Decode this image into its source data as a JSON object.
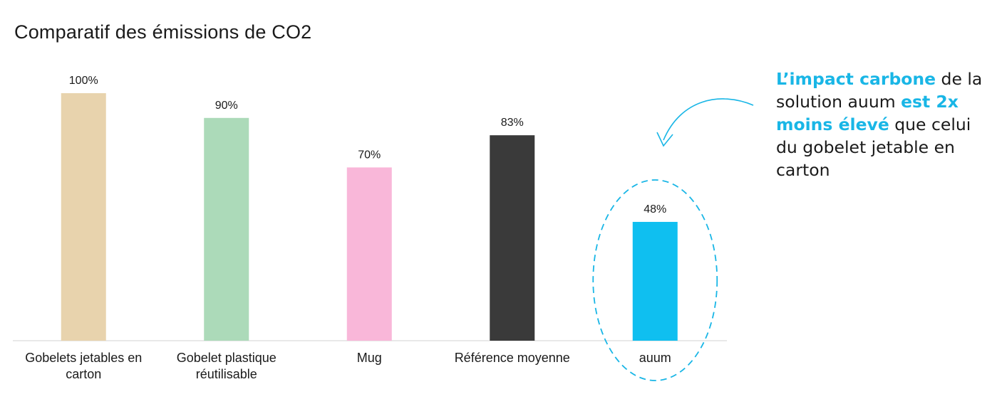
{
  "title": "Comparatif des émissions de CO2",
  "colors": {
    "accent": "#19b6e6",
    "axis": "#d9d9d9"
  },
  "callout": {
    "part1": "L’impact carbone",
    "part2": " de la solution auum ",
    "part3": "est 2x moins élevé",
    "part4": " que celui du gobelet jetable en carton"
  },
  "chart_data": {
    "type": "bar",
    "title": "Comparatif des émissions de CO2",
    "xlabel": "",
    "ylabel": "",
    "ylim": [
      0,
      100
    ],
    "grid": false,
    "categories": [
      [
        "Gobelets jetables en",
        "carton"
      ],
      [
        "Gobelet plastique",
        "réutilisable"
      ],
      [
        "Mug"
      ],
      [
        "Référence moyenne"
      ],
      [
        "auum"
      ]
    ],
    "values": [
      100,
      90,
      70,
      83,
      48
    ],
    "value_labels": [
      "100%",
      "90%",
      "70%",
      "83%",
      "48%"
    ],
    "bar_colors": [
      "#e8d3ad",
      "#acdab9",
      "#f9b7d9",
      "#3a3a3a",
      "#0fbff0"
    ],
    "highlight_index": 4
  }
}
